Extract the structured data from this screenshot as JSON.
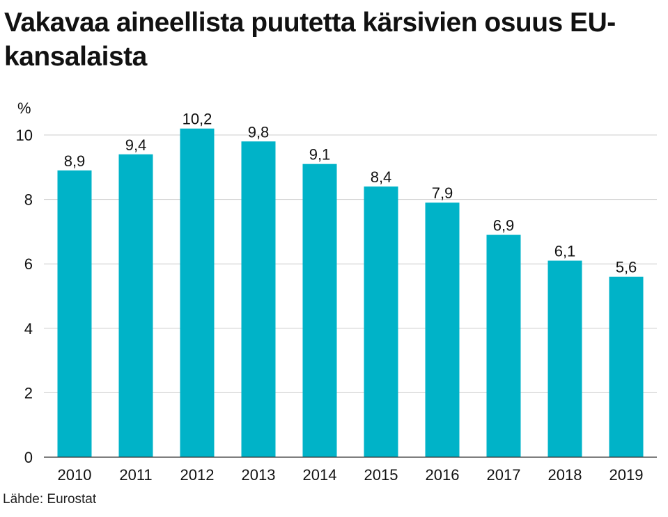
{
  "chart_data": {
    "type": "bar",
    "title": "Vakavaa aineellista puutetta kärsivien osuus EU-kansalaista",
    "ylabel": "%",
    "xlabel": "",
    "categories": [
      "2010",
      "2011",
      "2012",
      "2013",
      "2014",
      "2015",
      "2016",
      "2017",
      "2018",
      "2019"
    ],
    "values": [
      8.9,
      9.4,
      10.2,
      9.8,
      9.1,
      8.4,
      7.9,
      6.9,
      6.1,
      5.6
    ],
    "value_labels": [
      "8,9",
      "9,4",
      "10,2",
      "9,8",
      "9,1",
      "8,4",
      "7,9",
      "6,9",
      "6,1",
      "5,6"
    ],
    "ylim": [
      0,
      10
    ],
    "yticks": [
      0,
      2,
      4,
      6,
      8,
      10
    ],
    "ytick_labels": [
      "0",
      "2",
      "4",
      "6",
      "8",
      "10"
    ],
    "grid": true,
    "bar_color": "#00b3c8",
    "grid_color": "#cccccc"
  },
  "source": "Lähde: Eurostat"
}
